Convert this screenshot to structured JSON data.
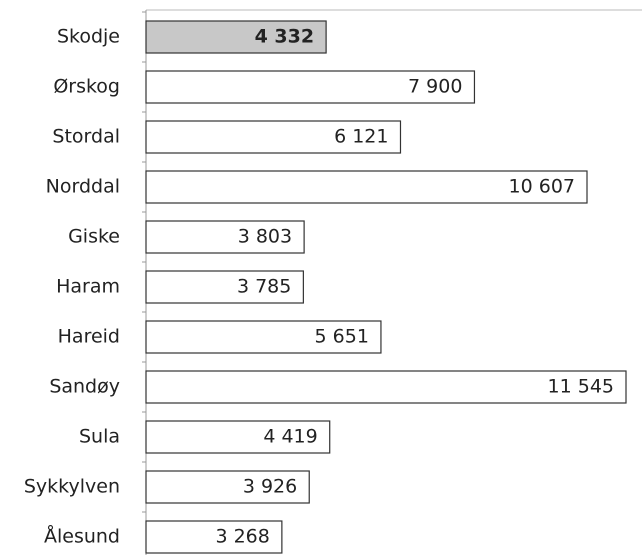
{
  "chart_data": {
    "type": "bar",
    "orientation": "horizontal",
    "categories": [
      "Skodje",
      "Ørskog",
      "Stordal",
      "Norddal",
      "Giske",
      "Haram",
      "Hareid",
      "Sandøy",
      "Sula",
      "Sykkylven",
      "Ålesund"
    ],
    "values": [
      4332,
      7900,
      6121,
      10607,
      3803,
      3785,
      5651,
      11545,
      4419,
      3926,
      3268
    ],
    "value_labels": [
      "4 332",
      "7 900",
      "6 121",
      "10 607",
      "3 803",
      "3 785",
      "5 651",
      "11 545",
      "4 419",
      "3 926",
      "3 268"
    ],
    "color": "#ffffff",
    "highlight_color": "#c8c8c8",
    "highlight_index": 0
  }
}
